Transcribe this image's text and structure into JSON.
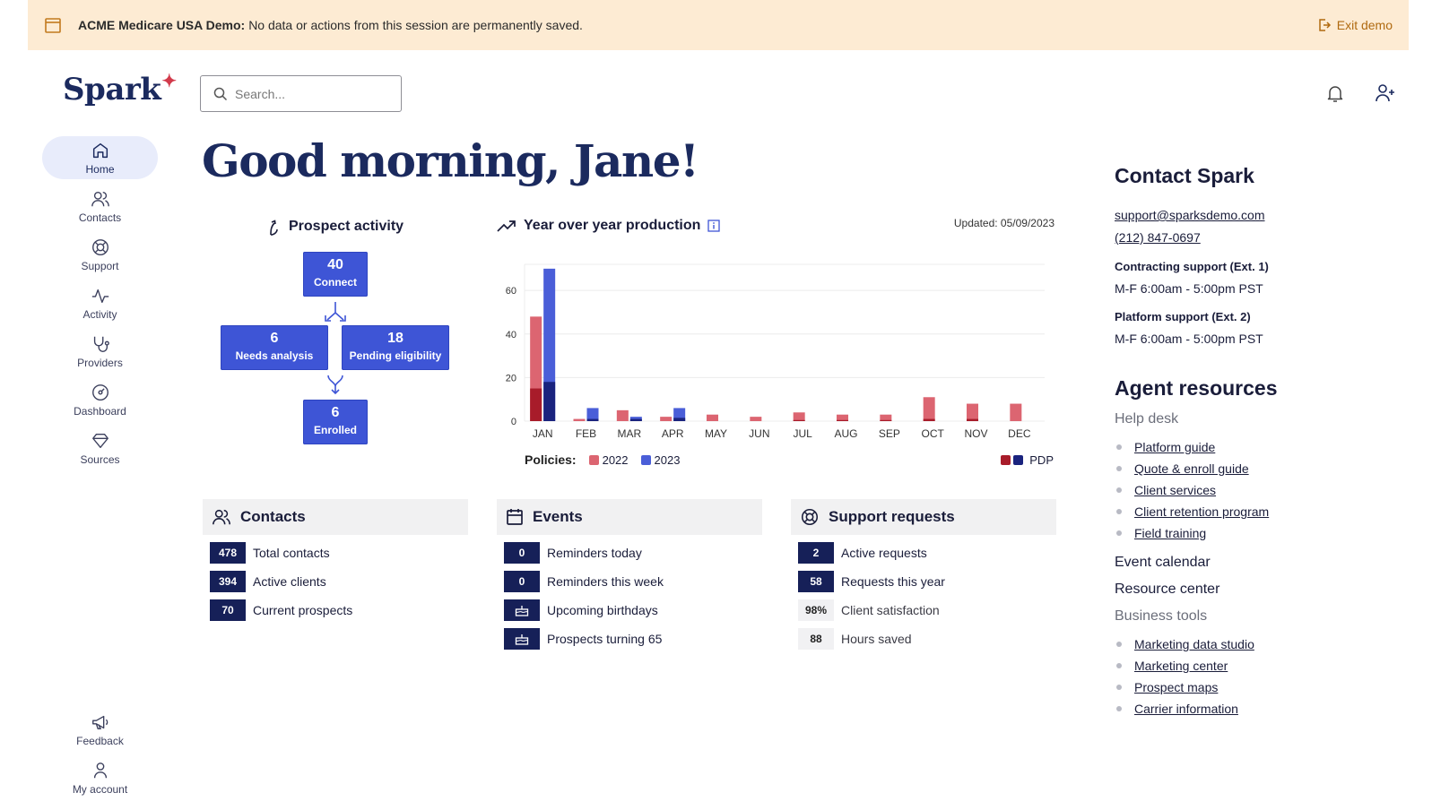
{
  "banner": {
    "title": "ACME Medicare USA Demo:",
    "message": "No data or actions from this session are permanently saved.",
    "exit_label": "Exit demo"
  },
  "brand": {
    "name": "Spark"
  },
  "search": {
    "placeholder": "Search..."
  },
  "nav": {
    "items": [
      {
        "label": "Home",
        "icon": "home-icon"
      },
      {
        "label": "Contacts",
        "icon": "contacts-icon"
      },
      {
        "label": "Support",
        "icon": "support-icon"
      },
      {
        "label": "Activity",
        "icon": "activity-icon"
      },
      {
        "label": "Providers",
        "icon": "stethoscope-icon"
      },
      {
        "label": "Dashboard",
        "icon": "gauge-icon"
      },
      {
        "label": "Sources",
        "icon": "tag-icon"
      }
    ],
    "bottom": [
      {
        "label": "Feedback",
        "icon": "megaphone-icon"
      },
      {
        "label": "My account",
        "icon": "user-icon"
      }
    ]
  },
  "greeting": "Good morning, Jane!",
  "prospect_activity": {
    "title": "Prospect activity",
    "connect": {
      "value": "40",
      "label": "Connect"
    },
    "needs_analysis": {
      "value": "6",
      "label": "Needs analysis"
    },
    "pending_eligibility": {
      "value": "18",
      "label": "Pending eligibility"
    },
    "enrolled": {
      "value": "6",
      "label": "Enrolled"
    }
  },
  "yoy": {
    "title": "Year over year production",
    "updated": "Updated: 05/09/2023",
    "legend_label": "Policies:",
    "legend_2022": "2022",
    "legend_2023": "2023",
    "legend_pdp": "PDP"
  },
  "chart_data": {
    "type": "bar",
    "categories": [
      "JAN",
      "FEB",
      "MAR",
      "APR",
      "MAY",
      "JUN",
      "JUL",
      "AUG",
      "SEP",
      "OCT",
      "NOV",
      "DEC"
    ],
    "series": [
      {
        "name": "2022",
        "values": [
          48,
          1,
          5,
          2,
          3,
          2,
          4,
          3,
          3,
          11,
          8,
          8
        ]
      },
      {
        "name": "2023",
        "values": [
          70,
          6,
          2,
          6,
          null,
          null,
          null,
          null,
          null,
          null,
          null,
          null
        ]
      }
    ],
    "pdp": {
      "2022": [
        15,
        0,
        0,
        0,
        0,
        0,
        0.5,
        0.5,
        0.5,
        1,
        1,
        0
      ],
      "2023": [
        18,
        1,
        1,
        1.5,
        null,
        null,
        null,
        null,
        null,
        null,
        null,
        null
      ]
    },
    "ylim": [
      0,
      72
    ],
    "yticks": [
      0,
      20,
      40,
      60
    ],
    "colors": {
      "c2022": "#dc6571",
      "c2023": "#4a5ed8",
      "pdp2022": "#a81c2a",
      "pdp2023": "#1a237e"
    },
    "grid": true,
    "legend": "bottom"
  },
  "contacts": {
    "title": "Contacts",
    "rows": [
      {
        "value": "478",
        "label": "Total contacts"
      },
      {
        "value": "394",
        "label": "Active clients"
      },
      {
        "value": "70",
        "label": "Current prospects"
      }
    ]
  },
  "events": {
    "title": "Events",
    "rows": [
      {
        "value": "0",
        "label": "Reminders today"
      },
      {
        "value": "0",
        "label": "Reminders this week"
      },
      {
        "icon": "cake-icon",
        "label": "Upcoming birthdays"
      },
      {
        "icon": "cake-icon",
        "label": "Prospects turning 65"
      }
    ]
  },
  "support_requests": {
    "title": "Support requests",
    "rows": [
      {
        "value": "2",
        "label": "Active requests"
      },
      {
        "value": "58",
        "label": "Requests this year"
      },
      {
        "value": "98%",
        "label": "Client satisfaction"
      },
      {
        "value": "88",
        "label": "Hours saved"
      }
    ]
  },
  "contact_spark": {
    "title": "Contact Spark",
    "email": "support@sparksdemo.com",
    "phone": "(212) 847-0697",
    "contracting_label": "Contracting support (Ext. 1)",
    "contracting_hours": "M-F 6:00am - 5:00pm PST",
    "platform_label": "Platform support (Ext. 2)",
    "platform_hours": "M-F 6:00am - 5:00pm PST"
  },
  "agent_resources": {
    "title": "Agent resources",
    "help_desk": "Help desk",
    "help_items": [
      "Platform guide",
      "Quote & enroll guide",
      "Client services",
      "Client retention program",
      "Field training"
    ],
    "event_calendar": "Event calendar",
    "resource_center": "Resource center",
    "business_tools": "Business tools",
    "tool_items": [
      "Marketing data studio",
      "Marketing center",
      "Prospect maps",
      "Carrier information"
    ]
  }
}
